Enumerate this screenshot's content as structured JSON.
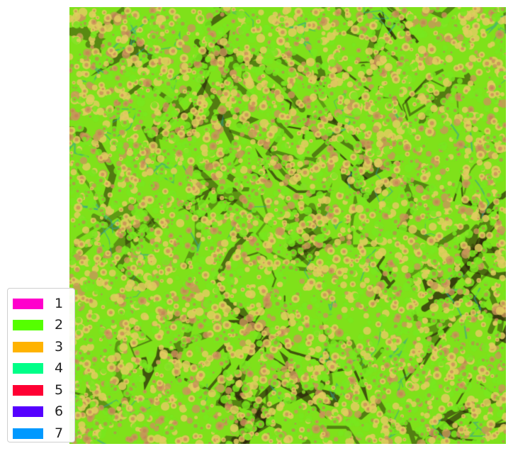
{
  "image": {
    "description_colors": {
      "dominant": "#7fe11a",
      "nuclei": "#e0c860",
      "stroma": "#3a2c0e",
      "fiber": "#2f9aa0"
    }
  },
  "legend": {
    "items": [
      {
        "label": "1",
        "color": "#ff00cc"
      },
      {
        "label": "2",
        "color": "#55ff00"
      },
      {
        "label": "3",
        "color": "#ffb300"
      },
      {
        "label": "4",
        "color": "#00ff88"
      },
      {
        "label": "5",
        "color": "#ff0033"
      },
      {
        "label": "6",
        "color": "#5500ff"
      },
      {
        "label": "7",
        "color": "#0099ff"
      }
    ]
  }
}
